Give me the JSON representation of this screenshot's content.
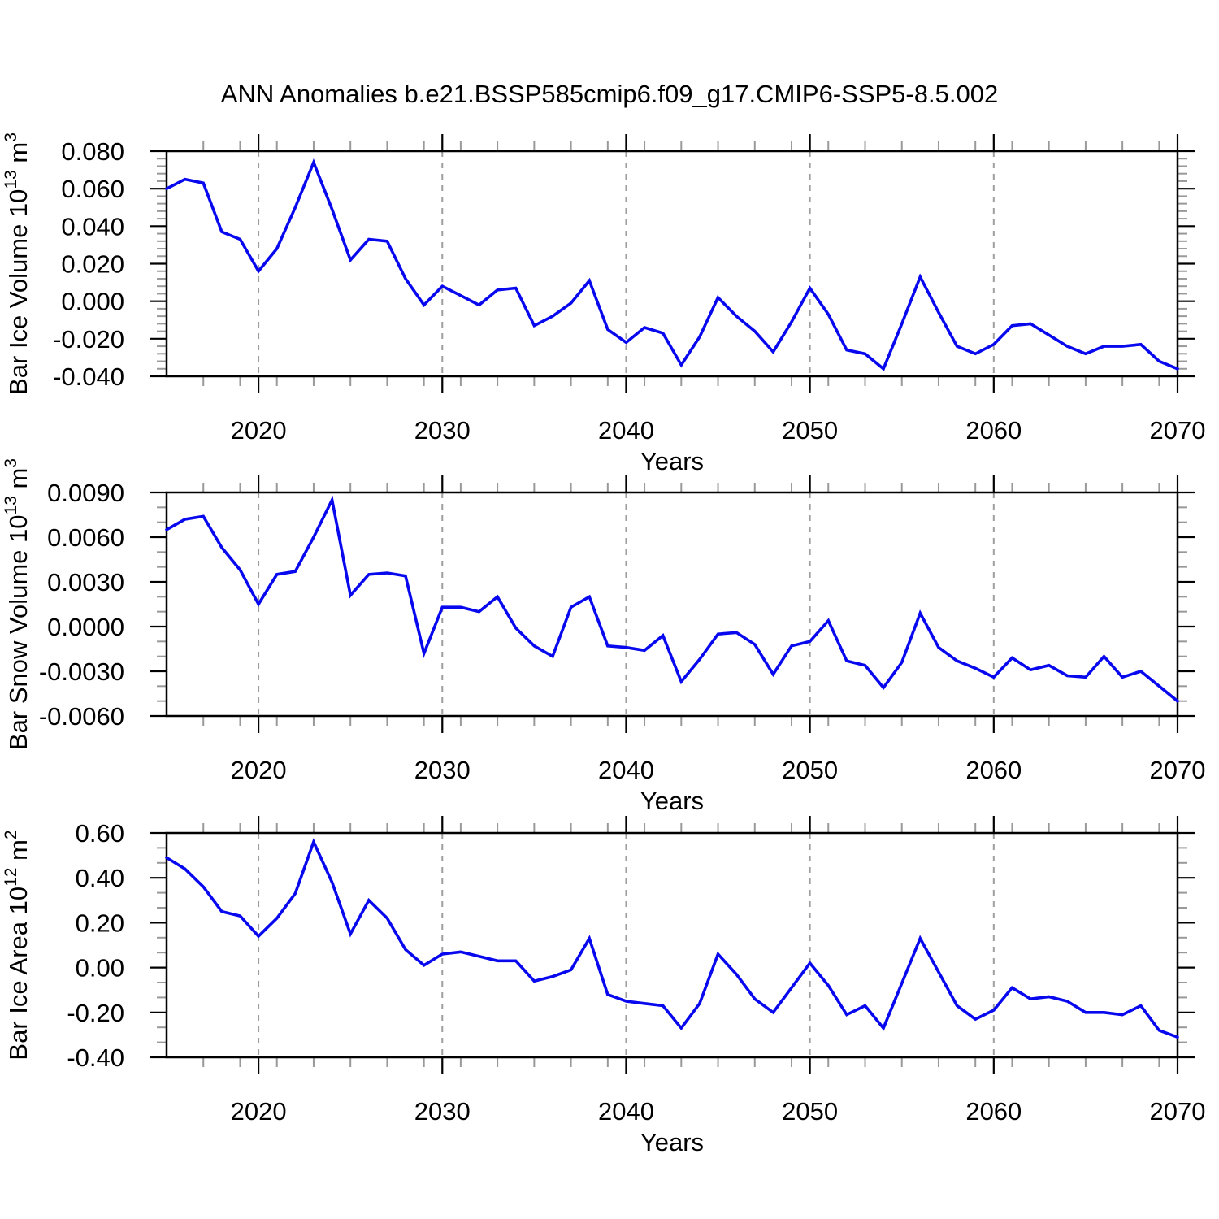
{
  "title": "ANN Anomalies b.e21.BSSP585cmip6.f09_g17.CMIP6-SSP5-8.5.002",
  "colors": {
    "line": "#0808ee",
    "axis": "#000000",
    "major_tick": "#000000",
    "minor_tick": "#999999",
    "grid": "#9e9e9e",
    "background": "#ffffff"
  },
  "x_axis": {
    "label": "Years",
    "start": 2015,
    "end": 2070,
    "major_ticks": [
      2020,
      2030,
      2040,
      2050,
      2060,
      2070
    ],
    "major_tick_labels": [
      "2020",
      "2030",
      "2040",
      "2050",
      "2060",
      "2070"
    ],
    "minor_step_years": 2,
    "grid_years": [
      2020,
      2030,
      2040,
      2050,
      2060
    ]
  },
  "chart_data": [
    {
      "type": "line",
      "ylabel": "Bar Ice Volume 10^13 m^3",
      "ylabel_parts": [
        [
          "Bar Ice Volume 10",
          0
        ],
        [
          "13",
          1
        ],
        [
          " m",
          0
        ],
        [
          "3",
          1
        ]
      ],
      "xlabel": "Years",
      "ylim": [
        -0.04,
        0.08
      ],
      "ytick_values": [
        0.08,
        0.06,
        0.04,
        0.02,
        0.0,
        -0.02,
        -0.04
      ],
      "ytick_labels": [
        "0.080",
        "0.060",
        "0.040",
        "0.020",
        "0.000",
        "-0.020",
        "-0.040"
      ],
      "y_minor_divisions": 5,
      "grid": "dashed-vertical-decades",
      "legend": "none",
      "x": [
        2015,
        2016,
        2017,
        2018,
        2019,
        2020,
        2021,
        2022,
        2023,
        2024,
        2025,
        2026,
        2027,
        2028,
        2029,
        2030,
        2031,
        2032,
        2033,
        2034,
        2035,
        2036,
        2037,
        2038,
        2039,
        2040,
        2041,
        2042,
        2043,
        2044,
        2045,
        2046,
        2047,
        2048,
        2049,
        2050,
        2051,
        2052,
        2053,
        2054,
        2055,
        2056,
        2057,
        2058,
        2059,
        2060,
        2061,
        2062,
        2063,
        2064,
        2065,
        2066,
        2067,
        2068,
        2069,
        2070
      ],
      "values": [
        0.06,
        0.065,
        0.063,
        0.037,
        0.033,
        0.016,
        0.028,
        0.05,
        0.074,
        0.049,
        0.022,
        0.033,
        0.032,
        0.012,
        -0.002,
        0.008,
        0.003,
        -0.002,
        0.006,
        0.007,
        -0.013,
        -0.008,
        -0.001,
        0.011,
        -0.015,
        -0.022,
        -0.014,
        -0.017,
        -0.034,
        -0.019,
        0.002,
        -0.008,
        -0.016,
        -0.027,
        -0.011,
        0.007,
        -0.007,
        -0.026,
        -0.028,
        -0.036,
        -0.012,
        0.013,
        -0.006,
        -0.024,
        -0.028,
        -0.023,
        -0.013,
        -0.012,
        -0.018,
        -0.024,
        -0.028,
        -0.024,
        -0.024,
        -0.023,
        -0.032,
        -0.036
      ]
    },
    {
      "type": "line",
      "ylabel": "Bar Snow Volume 10^13 m^3",
      "ylabel_parts": [
        [
          "Bar Snow Volume 10",
          0
        ],
        [
          "13",
          1
        ],
        [
          " m",
          0
        ],
        [
          "3",
          1
        ]
      ],
      "xlabel": "Years",
      "ylim": [
        -0.006,
        0.009
      ],
      "ytick_values": [
        0.009,
        0.006,
        0.003,
        0.0,
        -0.003,
        -0.006
      ],
      "ytick_labels": [
        "0.0090",
        "0.0060",
        "0.0030",
        "0.0000",
        "-0.0030",
        "-0.0060"
      ],
      "y_minor_divisions": 3,
      "grid": "dashed-vertical-decades",
      "legend": "none",
      "x": [
        2015,
        2016,
        2017,
        2018,
        2019,
        2020,
        2021,
        2022,
        2023,
        2024,
        2025,
        2026,
        2027,
        2028,
        2029,
        2030,
        2031,
        2032,
        2033,
        2034,
        2035,
        2036,
        2037,
        2038,
        2039,
        2040,
        2041,
        2042,
        2043,
        2044,
        2045,
        2046,
        2047,
        2048,
        2049,
        2050,
        2051,
        2052,
        2053,
        2054,
        2055,
        2056,
        2057,
        2058,
        2059,
        2060,
        2061,
        2062,
        2063,
        2064,
        2065,
        2066,
        2067,
        2068,
        2069,
        2070
      ],
      "values": [
        0.0065,
        0.0072,
        0.0074,
        0.0053,
        0.0038,
        0.0015,
        0.0035,
        0.0037,
        0.006,
        0.0085,
        0.0021,
        0.0035,
        0.0036,
        0.0034,
        -0.0018,
        0.0013,
        0.0013,
        0.001,
        0.002,
        -0.0001,
        -0.0013,
        -0.002,
        0.0013,
        0.002,
        -0.0013,
        -0.0014,
        -0.0016,
        -0.0006,
        -0.0037,
        -0.0022,
        -0.0005,
        -0.0004,
        -0.0012,
        -0.0032,
        -0.0013,
        -0.001,
        0.0004,
        -0.0023,
        -0.0026,
        -0.0041,
        -0.0024,
        0.0009,
        -0.0014,
        -0.0023,
        -0.0028,
        -0.0034,
        -0.0021,
        -0.0029,
        -0.0026,
        -0.0033,
        -0.0034,
        -0.002,
        -0.0034,
        -0.003,
        -0.004,
        -0.005
      ]
    },
    {
      "type": "line",
      "ylabel": "Bar Ice Area 10^12 m^2",
      "ylabel_parts": [
        [
          "Bar Ice Area 10",
          0
        ],
        [
          "12",
          1
        ],
        [
          " m",
          0
        ],
        [
          "2",
          1
        ]
      ],
      "xlabel": "Years",
      "ylim": [
        -0.4,
        0.6
      ],
      "ytick_values": [
        0.6,
        0.4,
        0.2,
        0.0,
        -0.2,
        -0.4
      ],
      "ytick_labels": [
        "0.60",
        "0.40",
        "0.20",
        "0.00",
        "-0.20",
        "-0.40"
      ],
      "y_minor_divisions": 3,
      "grid": "dashed-vertical-decades",
      "legend": "none",
      "x": [
        2015,
        2016,
        2017,
        2018,
        2019,
        2020,
        2021,
        2022,
        2023,
        2024,
        2025,
        2026,
        2027,
        2028,
        2029,
        2030,
        2031,
        2032,
        2033,
        2034,
        2035,
        2036,
        2037,
        2038,
        2039,
        2040,
        2041,
        2042,
        2043,
        2044,
        2045,
        2046,
        2047,
        2048,
        2049,
        2050,
        2051,
        2052,
        2053,
        2054,
        2055,
        2056,
        2057,
        2058,
        2059,
        2060,
        2061,
        2062,
        2063,
        2064,
        2065,
        2066,
        2067,
        2068,
        2069,
        2070
      ],
      "values": [
        0.49,
        0.44,
        0.36,
        0.25,
        0.23,
        0.14,
        0.22,
        0.33,
        0.56,
        0.38,
        0.15,
        0.3,
        0.22,
        0.08,
        0.01,
        0.06,
        0.07,
        0.05,
        0.03,
        0.03,
        -0.06,
        -0.04,
        -0.01,
        0.13,
        -0.12,
        -0.15,
        -0.16,
        -0.17,
        -0.27,
        -0.16,
        0.06,
        -0.03,
        -0.14,
        -0.2,
        -0.09,
        0.02,
        -0.08,
        -0.21,
        -0.17,
        -0.27,
        -0.07,
        0.13,
        -0.02,
        -0.17,
        -0.23,
        -0.19,
        -0.09,
        -0.14,
        -0.13,
        -0.15,
        -0.2,
        -0.2,
        -0.21,
        -0.17,
        -0.28,
        -0.31
      ]
    }
  ]
}
